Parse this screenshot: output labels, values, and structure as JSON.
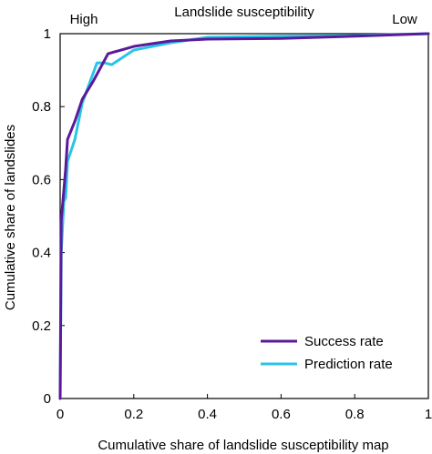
{
  "chart_data": {
    "type": "line",
    "title": "Landslide susceptibility",
    "top_left_label": "High",
    "top_right_label": "Low",
    "xlabel": "Cumulative share of landslide susceptibility map",
    "ylabel": "Cumulative share of landslides",
    "xlim": [
      0,
      1
    ],
    "ylim": [
      0,
      1
    ],
    "x_ticks": [
      "0",
      "0.2",
      "0.4",
      "0.6",
      "0.8",
      "1"
    ],
    "y_ticks": [
      "0",
      "0.2",
      "0.4",
      "0.6",
      "0.8",
      "1"
    ],
    "grid": false,
    "legend_position": "bottom-right",
    "series": [
      {
        "name": "Success rate",
        "color": "#5b1a9a",
        "points": [
          [
            0,
            0
          ],
          [
            0.003,
            0.49
          ],
          [
            0.01,
            0.57
          ],
          [
            0.015,
            0.63
          ],
          [
            0.02,
            0.71
          ],
          [
            0.04,
            0.76
          ],
          [
            0.06,
            0.82
          ],
          [
            0.09,
            0.87
          ],
          [
            0.13,
            0.945
          ],
          [
            0.2,
            0.965
          ],
          [
            0.3,
            0.98
          ],
          [
            0.4,
            0.985
          ],
          [
            0.6,
            0.987
          ],
          [
            0.8,
            0.993
          ],
          [
            1,
            1
          ]
        ]
      },
      {
        "name": "Prediction rate",
        "color": "#29c4ea",
        "points": [
          [
            0,
            0
          ],
          [
            0.003,
            0.4
          ],
          [
            0.01,
            0.54
          ],
          [
            0.015,
            0.55
          ],
          [
            0.02,
            0.65
          ],
          [
            0.04,
            0.71
          ],
          [
            0.06,
            0.81
          ],
          [
            0.1,
            0.92
          ],
          [
            0.12,
            0.92
          ],
          [
            0.14,
            0.915
          ],
          [
            0.2,
            0.955
          ],
          [
            0.3,
            0.975
          ],
          [
            0.4,
            0.99
          ],
          [
            0.6,
            0.993
          ],
          [
            0.8,
            0.995
          ],
          [
            1,
            1
          ]
        ]
      }
    ]
  }
}
